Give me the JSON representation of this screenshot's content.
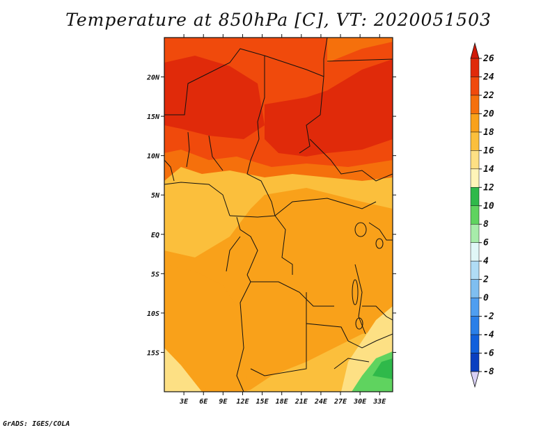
{
  "title": "Temperature at 850hPa [C], VT: 2020051503",
  "credit": "GrADS: IGES/COLA",
  "map": {
    "lon_range": [
      0,
      35
    ],
    "lat_range": [
      -20,
      25
    ],
    "lon_ticks": [
      {
        "value": 3,
        "label": "3E"
      },
      {
        "value": 6,
        "label": "6E"
      },
      {
        "value": 9,
        "label": "9E"
      },
      {
        "value": 12,
        "label": "12E"
      },
      {
        "value": 15,
        "label": "15E"
      },
      {
        "value": 18,
        "label": "18E"
      },
      {
        "value": 21,
        "label": "21E"
      },
      {
        "value": 24,
        "label": "24E"
      },
      {
        "value": 27,
        "label": "27E"
      },
      {
        "value": 30,
        "label": "30E"
      },
      {
        "value": 33,
        "label": "33E"
      }
    ],
    "lat_ticks": [
      {
        "value": 20,
        "label": "20N"
      },
      {
        "value": 15,
        "label": "15N"
      },
      {
        "value": 10,
        "label": "10N"
      },
      {
        "value": 5,
        "label": "5N"
      },
      {
        "value": 0,
        "label": "EQ"
      },
      {
        "value": -5,
        "label": "5S"
      },
      {
        "value": -10,
        "label": "10S"
      },
      {
        "value": -15,
        "label": "15S"
      }
    ]
  },
  "colorbar": {
    "levels": [
      {
        "label": "26",
        "color": "#e02a0a"
      },
      {
        "label": "24",
        "color": "#f04a0c"
      },
      {
        "label": "22",
        "color": "#f5700c"
      },
      {
        "label": "20",
        "color": "#f9a11a"
      },
      {
        "label": "18",
        "color": "#fbbf3c"
      },
      {
        "label": "16",
        "color": "#fde084"
      },
      {
        "label": "14",
        "color": "#fff4b8"
      },
      {
        "label": "12",
        "color": "#2fb94a"
      },
      {
        "label": "10",
        "color": "#5fd35f"
      },
      {
        "label": "8",
        "color": "#a7ecaa"
      },
      {
        "label": "6",
        "color": "#e0f7f7"
      },
      {
        "label": "4",
        "color": "#b0dcf5"
      },
      {
        "label": "2",
        "color": "#7fbef0"
      },
      {
        "label": "0",
        "color": "#4f9ef0"
      },
      {
        "label": "-2",
        "color": "#2a7fe8"
      },
      {
        "label": "-4",
        "color": "#1160dc"
      },
      {
        "label": "-6",
        "color": "#0a3fc0"
      },
      {
        "label": "-8",
        "color": "#08128a"
      }
    ],
    "top_color": "#d01a08",
    "bottom_color": "#d8d0f5"
  },
  "colors": {
    "ocean_base": "#fbbf3c",
    "warm_north": "#f04a0c",
    "hot_core": "#e02a0a",
    "mid": "#f5700c",
    "band": "#f9a11a",
    "cool_south": "#fde084",
    "green_se": "#5fd35f"
  }
}
